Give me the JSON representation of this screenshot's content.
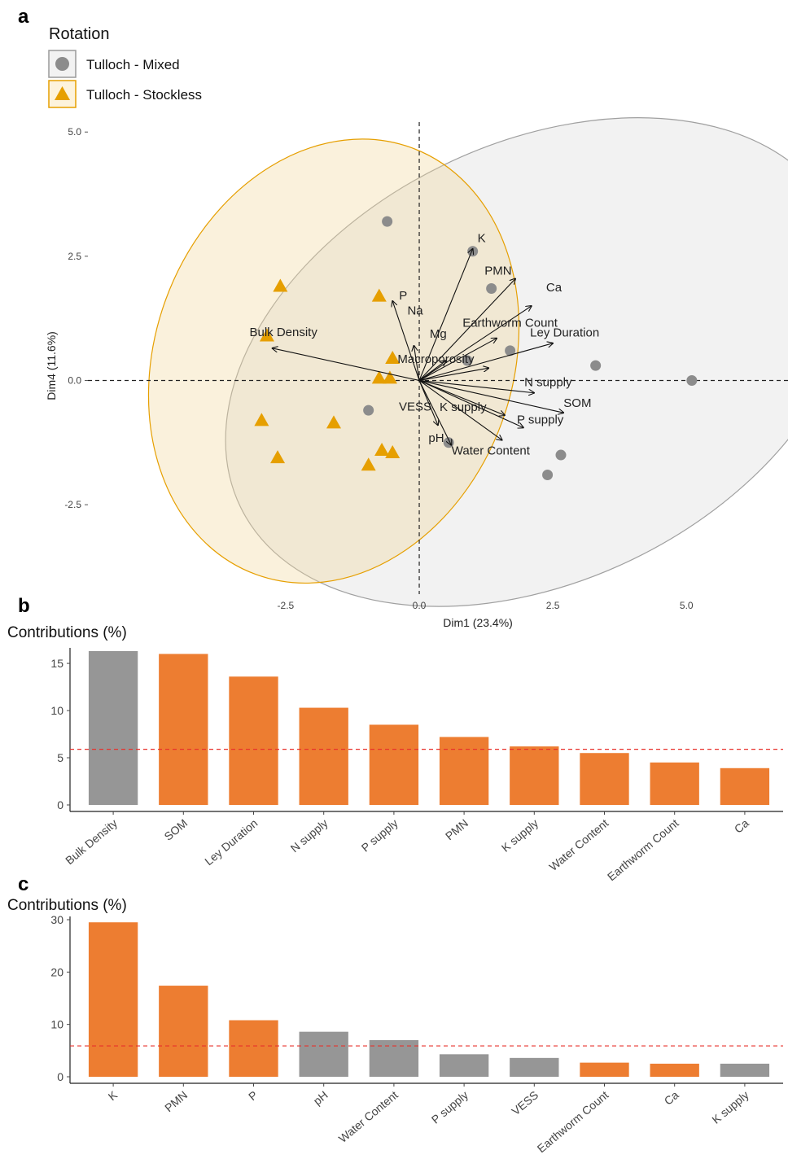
{
  "panel_labels": {
    "a": "a",
    "b": "b",
    "c": "c"
  },
  "colors": {
    "mixed": "#8c8c8c",
    "stockless": "#e69f00",
    "orange_bar": "#ed7d31",
    "grey_bar": "#969696",
    "ref_line": "#e8302b"
  },
  "legend": {
    "title": "Rotation",
    "items": [
      {
        "label": "Tulloch - Mixed",
        "shape": "circle"
      },
      {
        "label": "Tulloch - Stockless",
        "shape": "triangle"
      }
    ]
  },
  "chart_data": [
    {
      "type": "scatter",
      "subtype": "pca-biplot",
      "xlabel": "Dim1 (23.4%)",
      "ylabel": "Dim4 (11.6%)",
      "xlim": [
        -6.2,
        6.9
      ],
      "ylim": [
        -4.3,
        5.2
      ],
      "xticks": [
        "-2.5",
        "0.0",
        "2.5",
        "5.0"
      ],
      "yticks": [
        "-2.5",
        "0.0",
        "2.5",
        "5.0"
      ],
      "series": [
        {
          "name": "Tulloch - Mixed",
          "points": [
            [
              -0.6,
              3.2
            ],
            [
              1.0,
              2.6
            ],
            [
              1.35,
              1.85
            ],
            [
              1.7,
              0.6
            ],
            [
              0.9,
              0.4
            ],
            [
              3.3,
              0.3
            ],
            [
              5.1,
              0.0
            ],
            [
              -0.95,
              -0.6
            ],
            [
              0.55,
              -1.25
            ],
            [
              2.65,
              -1.5
            ],
            [
              2.4,
              -1.9
            ]
          ]
        },
        {
          "name": "Tulloch - Stockless",
          "points": [
            [
              -2.6,
              1.9
            ],
            [
              -0.75,
              1.7
            ],
            [
              -2.85,
              0.9
            ],
            [
              -0.5,
              0.45
            ],
            [
              -0.75,
              0.05
            ],
            [
              -0.55,
              0.05
            ],
            [
              -2.95,
              -0.8
            ],
            [
              -1.6,
              -0.85
            ],
            [
              -0.7,
              -1.4
            ],
            [
              -0.5,
              -1.45
            ],
            [
              -2.65,
              -1.55
            ],
            [
              -0.95,
              -1.7
            ]
          ]
        }
      ],
      "ellipses": [
        {
          "series": "Tulloch - Mixed",
          "cx": 2.23,
          "cy": 0.37,
          "rx": 6.2,
          "ry": 4.4,
          "angle_deg": 26
        },
        {
          "series": "Tulloch - Stockless",
          "cx": -1.6,
          "cy": 0.39,
          "rx": 4.25,
          "ry": 3.6,
          "angle_deg": 70
        }
      ],
      "loadings": [
        {
          "label": "K",
          "x": 1.0,
          "y": 2.65
        },
        {
          "label": "PMN",
          "x": 1.8,
          "y": 2.05
        },
        {
          "label": "Ca",
          "x": 2.1,
          "y": 1.5
        },
        {
          "label": "P",
          "x": -0.5,
          "y": 1.6
        },
        {
          "label": "Na",
          "x": -0.1,
          "y": 0.7
        },
        {
          "label": "Mg",
          "x": 0.5,
          "y": 0.4
        },
        {
          "label": "Earthworm Count",
          "x": 1.45,
          "y": 0.85
        },
        {
          "label": "Ley Duration",
          "x": 2.5,
          "y": 0.75
        },
        {
          "label": "Macroporosity",
          "x": 1.3,
          "y": 0.25
        },
        {
          "label": "N supply",
          "x": 2.15,
          "y": -0.25
        },
        {
          "label": "SOM",
          "x": 2.7,
          "y": -0.65
        },
        {
          "label": "K supply",
          "x": 1.6,
          "y": -0.7
        },
        {
          "label": "P supply",
          "x": 1.95,
          "y": -0.95
        },
        {
          "label": "Water Content",
          "x": 1.55,
          "y": -1.2
        },
        {
          "label": "VESS",
          "x": 0.35,
          "y": -0.9
        },
        {
          "label": "pH",
          "x": 0.6,
          "y": -1.3
        },
        {
          "label": "Bulk Density",
          "x": -2.75,
          "y": 0.65
        }
      ]
    },
    {
      "type": "bar",
      "ylabel": "Contributions (%)",
      "ylim": [
        0,
        16.3
      ],
      "yticks": [
        "0",
        "5",
        "10",
        "15"
      ],
      "reference_line": 5.9,
      "categories": [
        "Bulk Density",
        "SOM",
        "Ley Duration",
        "N supply",
        "P supply",
        "PMN",
        "K supply",
        "Water Content",
        "Earthworm Count",
        "Ca"
      ],
      "values": [
        16.3,
        16.0,
        13.6,
        10.3,
        8.5,
        7.2,
        6.2,
        5.5,
        4.5,
        3.9
      ],
      "bar_colors": [
        "grey",
        "orange",
        "orange",
        "orange",
        "orange",
        "orange",
        "orange",
        "orange",
        "orange",
        "orange"
      ]
    },
    {
      "type": "bar",
      "ylabel": "Contributions (%)",
      "ylim": [
        0,
        30
      ],
      "yticks": [
        "0",
        "10",
        "20",
        "30"
      ],
      "reference_line": 5.9,
      "categories": [
        "K",
        "PMN",
        "P",
        "pH",
        "Water Content",
        "P supply",
        "VESS",
        "Earthworm Count",
        "Ca",
        "K supply"
      ],
      "values": [
        29.5,
        17.4,
        10.8,
        8.6,
        7.0,
        4.3,
        3.6,
        2.7,
        2.5,
        2.5
      ],
      "bar_colors": [
        "orange",
        "orange",
        "orange",
        "grey",
        "grey",
        "grey",
        "grey",
        "orange",
        "orange",
        "grey"
      ]
    }
  ]
}
